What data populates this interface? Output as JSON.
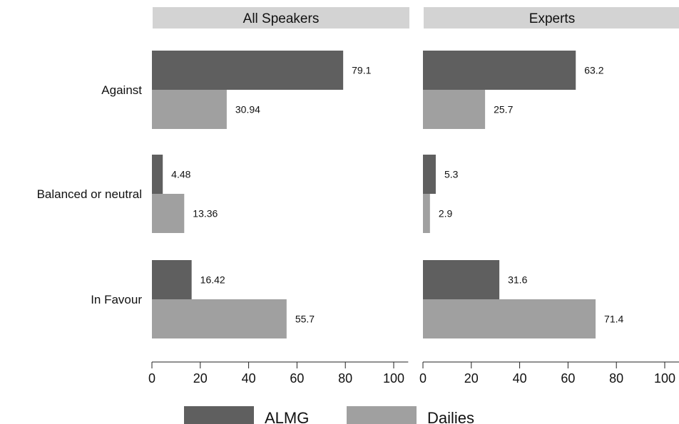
{
  "chart_data": {
    "type": "bar",
    "orientation": "horizontal",
    "categories": [
      "Against",
      "Balanced or neutral",
      "In Favour"
    ],
    "panels": [
      {
        "title": "All Speakers",
        "series": [
          {
            "name": "ALMG",
            "values": [
              79.1,
              4.48,
              16.42
            ]
          },
          {
            "name": "Dailies",
            "values": [
              30.94,
              13.36,
              55.7
            ]
          }
        ]
      },
      {
        "title": "Experts",
        "series": [
          {
            "name": "ALMG",
            "values": [
              63.2,
              5.3,
              31.6
            ]
          },
          {
            "name": "Dailies",
            "values": [
              25.7,
              2.9,
              71.4
            ]
          }
        ]
      }
    ],
    "value_labels": [
      [
        "79.1",
        "4.48",
        "16.42"
      ],
      [
        "30.94",
        "13.36",
        "55.7"
      ],
      [
        "63.2",
        "5.3",
        "31.6"
      ],
      [
        "25.7",
        "2.9",
        "71.4"
      ]
    ],
    "xlim": [
      0,
      106
    ],
    "xticks": [
      "0",
      "20",
      "40",
      "60",
      "80",
      "100"
    ],
    "grid": false,
    "legend": {
      "position": "bottom",
      "items": [
        "ALMG",
        "Dailies"
      ]
    },
    "colors": {
      "ALMG": "#5f5f5f",
      "Dailies": "#a0a0a0",
      "strip": "#d3d3d3"
    }
  }
}
